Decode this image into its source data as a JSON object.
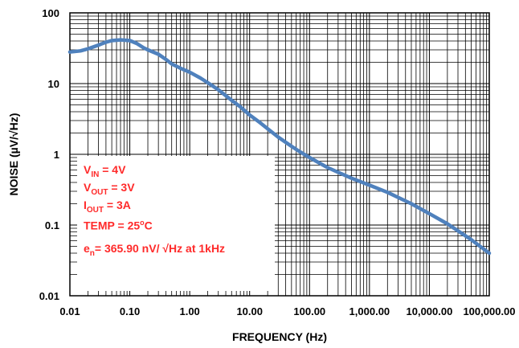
{
  "chart_data": {
    "type": "line",
    "xlabel": "FREQUENCY (Hz)",
    "ylabel": "NOISE (µV/√Hz)",
    "x_scale": "log",
    "y_scale": "log",
    "xlim": [
      0.01,
      100000
    ],
    "ylim": [
      0.01,
      100
    ],
    "grid": true,
    "x_ticks": [
      {
        "value": 0.01,
        "label": "0.01"
      },
      {
        "value": 0.1,
        "label": "0.10"
      },
      {
        "value": 1,
        "label": "1.00"
      },
      {
        "value": 10,
        "label": "10.00"
      },
      {
        "value": 100,
        "label": "100.00"
      },
      {
        "value": 1000,
        "label": "1,000.00"
      },
      {
        "value": 10000,
        "label": "10,000.00"
      },
      {
        "value": 100000,
        "label": "100,000.00"
      }
    ],
    "y_ticks": [
      {
        "value": 0.01,
        "label": "0.01"
      },
      {
        "value": 0.1,
        "label": "0.1"
      },
      {
        "value": 1,
        "label": "1"
      },
      {
        "value": 10,
        "label": "10"
      },
      {
        "value": 100,
        "label": "100"
      }
    ],
    "series": [
      {
        "color": "#4f81bd",
        "x": [
          0.01,
          0.015,
          0.02,
          0.03,
          0.04,
          0.05,
          0.07,
          0.1,
          0.13,
          0.17,
          0.2,
          0.3,
          0.4,
          0.5,
          0.7,
          1,
          1.5,
          2,
          3,
          5,
          7,
          10,
          15,
          20,
          30,
          50,
          70,
          100,
          200,
          500,
          1000,
          2000,
          5000,
          10000,
          20000,
          50000,
          100000
        ],
        "y": [
          28,
          29,
          31,
          35,
          38.5,
          40.5,
          41.5,
          40.5,
          37,
          32,
          30,
          26,
          22,
          19,
          16.5,
          14.5,
          12,
          10.3,
          8.2,
          5.8,
          4.7,
          3.6,
          2.8,
          2.3,
          1.75,
          1.3,
          1.08,
          0.9,
          0.65,
          0.46,
          0.366,
          0.29,
          0.2,
          0.145,
          0.104,
          0.062,
          0.04
        ]
      }
    ]
  },
  "annotation": {
    "lines": [
      {
        "main": "V",
        "sub": "IN",
        "rest": " = 4V"
      },
      {
        "main": "V",
        "sub": "OUT",
        "rest": " = 3V"
      },
      {
        "main": "I",
        "sub": "OUT",
        "rest": " = 3A"
      },
      {
        "main": "TEMP = 25",
        "sup": "o",
        "rest": "C"
      },
      {
        "main": "e",
        "sub": "n",
        "rest": "= 365.90 nV/ √Hz at 1kHz"
      }
    ]
  }
}
